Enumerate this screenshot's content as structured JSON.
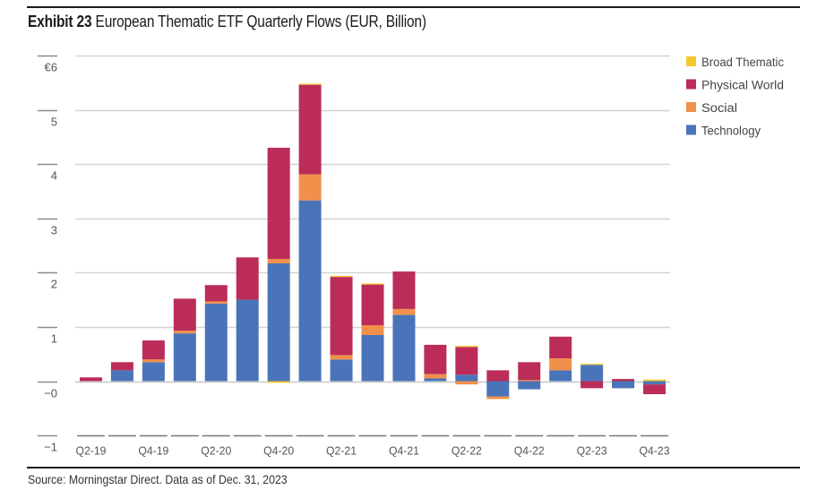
{
  "header": {
    "exhibit_label": "Exhibit 23",
    "title": "European Thematic ETF Quarterly Flows (EUR, Billion)"
  },
  "footer": {
    "source": "Source: Morningstar Direct. Data as of Dec. 31, 2023"
  },
  "chart_data": {
    "type": "bar",
    "stacked": true,
    "title": "European Thematic ETF Quarterly Flows (EUR, Billion)",
    "xlabel": "",
    "ylabel": "",
    "ylim": [
      -1,
      6
    ],
    "yticks": [
      -1,
      0,
      1,
      2,
      3,
      4,
      5,
      6
    ],
    "ytick_labels": [
      "−1",
      "−0",
      "1",
      "2",
      "3",
      "4",
      "5",
      "€6"
    ],
    "grid": true,
    "legend_position": "top-right",
    "categories": [
      "Q2-19",
      "Q3-19",
      "Q4-19",
      "Q1-20",
      "Q2-20",
      "Q3-20",
      "Q4-20",
      "Q1-21",
      "Q2-21",
      "Q3-21",
      "Q4-21",
      "Q1-22",
      "Q2-22",
      "Q3-22",
      "Q4-22",
      "Q1-23",
      "Q2-23",
      "Q3-23",
      "Q4-23"
    ],
    "xtick_labels": [
      "Q2-19",
      "",
      "Q4-19",
      "",
      "Q2-20",
      "",
      "Q4-20",
      "",
      "Q2-21",
      "",
      "Q4-21",
      "",
      "Q2-22",
      "",
      "Q4-22",
      "",
      "Q2-23",
      "",
      "Q4-23"
    ],
    "series": [
      {
        "name": "Technology",
        "color": "#4a74b9",
        "values": [
          0.0,
          0.2,
          0.35,
          0.88,
          1.43,
          1.5,
          2.17,
          3.33,
          0.4,
          0.85,
          1.22,
          0.05,
          0.12,
          -0.28,
          -0.15,
          0.2,
          0.3,
          -0.13,
          -0.06
        ]
      },
      {
        "name": "Social",
        "color": "#f0904a",
        "values": [
          0.0,
          0.0,
          0.05,
          0.05,
          0.04,
          0.0,
          0.08,
          0.48,
          0.08,
          0.18,
          0.11,
          0.08,
          -0.06,
          -0.05,
          0.02,
          0.22,
          0.0,
          0.0,
          0.0
        ]
      },
      {
        "name": "Physical World",
        "color": "#bb2d58",
        "values": [
          0.07,
          0.15,
          0.35,
          0.59,
          0.3,
          0.78,
          2.05,
          1.65,
          1.44,
          0.75,
          0.69,
          0.54,
          0.51,
          0.2,
          0.33,
          0.4,
          -0.13,
          0.04,
          -0.18
        ]
      },
      {
        "name": "Broad Thematic",
        "color": "#f5c82d",
        "values": [
          0.0,
          0.0,
          0.0,
          0.0,
          0.0,
          0.0,
          -0.03,
          0.02,
          0.02,
          0.02,
          0.0,
          0.0,
          0.02,
          0.0,
          0.0,
          0.0,
          0.02,
          0.0,
          0.03
        ]
      }
    ],
    "legend_order": [
      "Broad Thematic",
      "Physical World",
      "Social",
      "Technology"
    ]
  }
}
